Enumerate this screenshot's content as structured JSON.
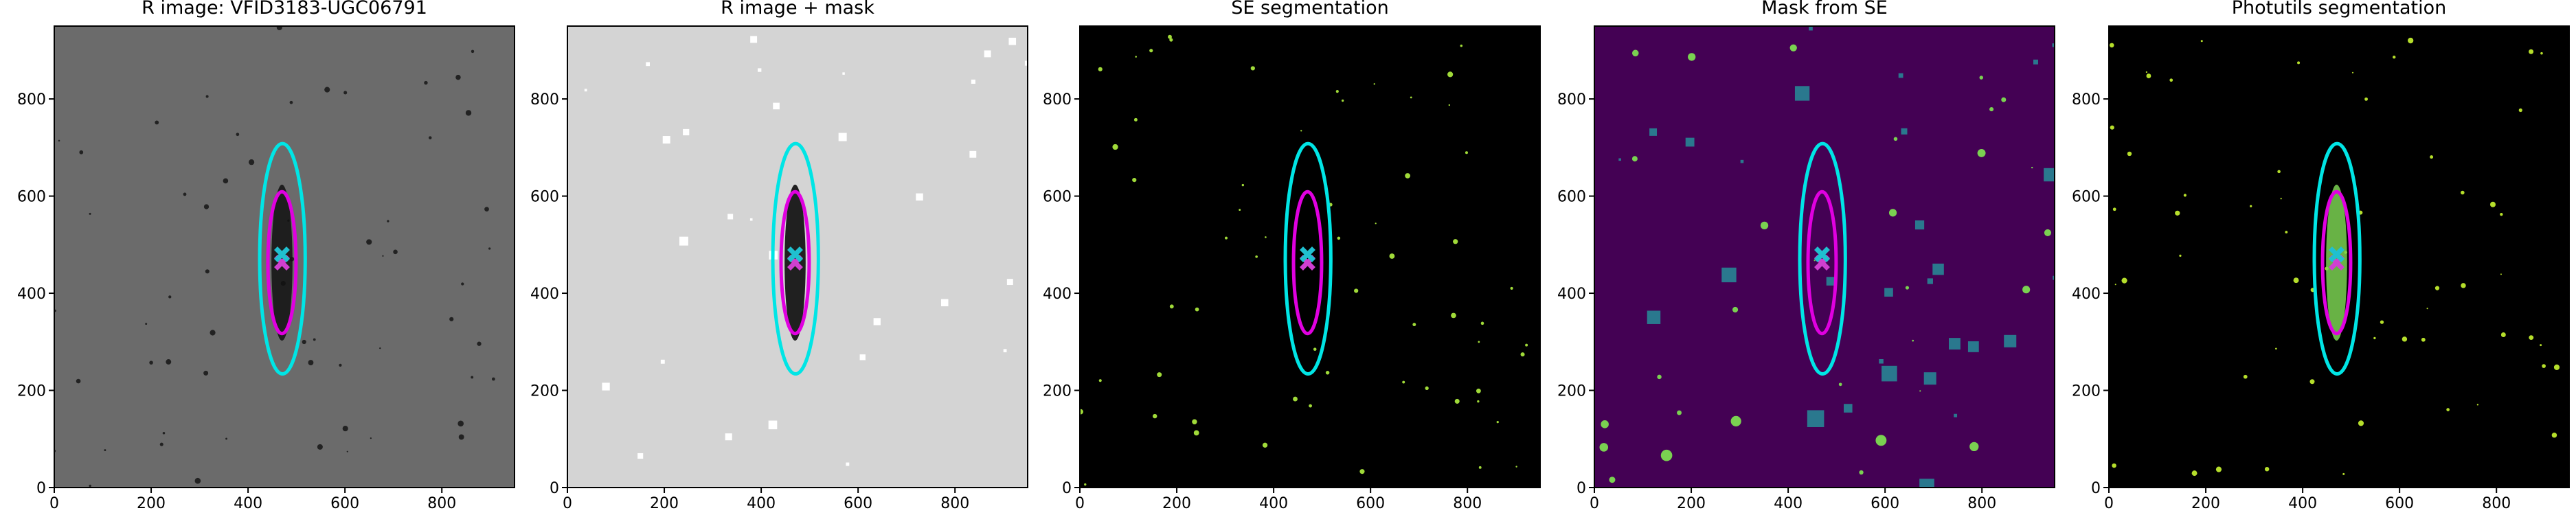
{
  "chart_data": [
    {
      "type": "image",
      "title": "R image: VFID3183-UGC06791",
      "background": "#6b6b6b",
      "xlim": [
        0,
        950
      ],
      "ylim": [
        0,
        950
      ],
      "xticks": [
        0,
        200,
        400,
        600,
        800
      ],
      "yticks": [
        0,
        200,
        400,
        600,
        800
      ],
      "ellipses": [
        {
          "color": "#00e5e5",
          "center": [
            471,
            471
          ],
          "rx": 47,
          "ry": 237
        },
        {
          "color": "#e000e0",
          "center": [
            470,
            463
          ],
          "rx": 29,
          "ry": 146
        }
      ],
      "markers": [
        {
          "color": "#d040d0",
          "x": 470,
          "y": 463
        },
        {
          "color": "#20c0d0",
          "x": 470,
          "y": 480
        }
      ]
    },
    {
      "type": "image",
      "title": "R image + mask",
      "background": "#d4d4d4",
      "xlim": [
        0,
        950
      ],
      "ylim": [
        0,
        950
      ],
      "xticks": [
        0,
        200,
        400,
        600,
        800
      ],
      "yticks": [
        0,
        200,
        400,
        600,
        800
      ],
      "ellipses": [
        {
          "color": "#00e5e5",
          "center": [
            471,
            471
          ],
          "rx": 47,
          "ry": 237
        },
        {
          "color": "#e000e0",
          "center": [
            470,
            463
          ],
          "rx": 29,
          "ry": 146
        }
      ],
      "markers": [
        {
          "color": "#d040d0",
          "x": 470,
          "y": 463
        },
        {
          "color": "#20c0d0",
          "x": 470,
          "y": 480
        }
      ]
    },
    {
      "type": "image",
      "title": "SE segmentation",
      "background": "#000000",
      "xlim": [
        0,
        950
      ],
      "ylim": [
        0,
        950
      ],
      "xticks": [
        0,
        200,
        400,
        600,
        800
      ],
      "yticks": [
        0,
        200,
        400,
        600,
        800
      ],
      "ellipses": [
        {
          "color": "#00e5e5",
          "center": [
            471,
            471
          ],
          "rx": 47,
          "ry": 237
        },
        {
          "color": "#e000e0",
          "center": [
            470,
            463
          ],
          "rx": 29,
          "ry": 146
        }
      ],
      "markers": [
        {
          "color": "#d040d0",
          "x": 470,
          "y": 463
        },
        {
          "color": "#20c0d0",
          "x": 470,
          "y": 480
        }
      ]
    },
    {
      "type": "image",
      "title": "Mask from SE",
      "background": "#440154",
      "xlim": [
        0,
        950
      ],
      "ylim": [
        0,
        950
      ],
      "xticks": [
        0,
        200,
        400,
        600,
        800
      ],
      "yticks": [
        0,
        200,
        400,
        600,
        800
      ],
      "ellipses": [
        {
          "color": "#00e5e5",
          "center": [
            471,
            471
          ],
          "rx": 47,
          "ry": 237
        },
        {
          "color": "#e000e0",
          "center": [
            470,
            463
          ],
          "rx": 29,
          "ry": 146
        }
      ],
      "markers": [
        {
          "color": "#d040d0",
          "x": 470,
          "y": 463
        },
        {
          "color": "#20c0d0",
          "x": 470,
          "y": 480
        }
      ]
    },
    {
      "type": "image",
      "title": "Photutils segmentation",
      "background": "#000000",
      "xlim": [
        0,
        950
      ],
      "ylim": [
        0,
        950
      ],
      "xticks": [
        0,
        200,
        400,
        600,
        800
      ],
      "yticks": [
        0,
        200,
        400,
        600,
        800
      ],
      "ellipses": [
        {
          "color": "#00e5e5",
          "center": [
            471,
            471
          ],
          "rx": 47,
          "ry": 237
        },
        {
          "color": "#e000e0",
          "center": [
            470,
            463
          ],
          "rx": 29,
          "ry": 146
        }
      ],
      "markers": [
        {
          "color": "#d040d0",
          "x": 470,
          "y": 463
        },
        {
          "color": "#20c0d0",
          "x": 470,
          "y": 480
        }
      ]
    }
  ]
}
